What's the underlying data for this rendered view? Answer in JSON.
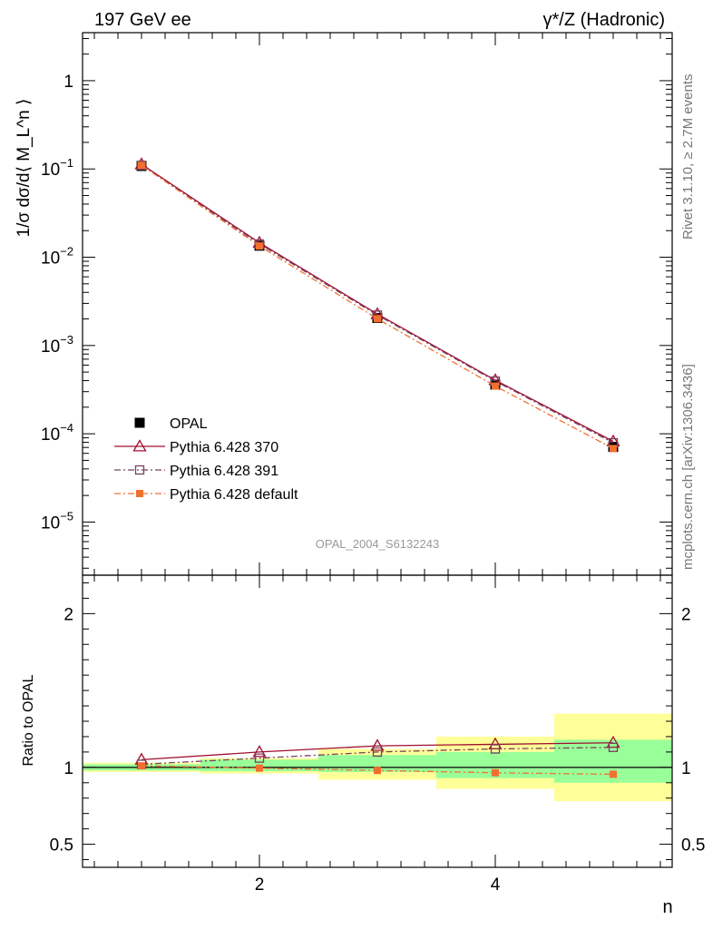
{
  "header": {
    "left": "197 GeV ee",
    "right": "γ*/Z (Hadronic)",
    "side_top": "Rivet 3.1.10, ≥ 2.7M events",
    "side_bottom": "mcplots.cern.ch [arXiv:1306.3436]",
    "analysis": "OPAL_2004_S6132243"
  },
  "chart_data": [
    {
      "type": "line",
      "panel": "main",
      "ylabel": "1/σ dσ/d⟨ M_L^n ⟩",
      "xlabel": "n",
      "yscale": "log",
      "xlim": [
        0.5,
        5.5
      ],
      "ylim": [
        2.5e-06,
        3.5
      ],
      "y_tick_labels": [
        {
          "value": 1,
          "base": "1",
          "exp": ""
        },
        {
          "value": 0.1,
          "base": "10",
          "exp": "−1"
        },
        {
          "value": 0.01,
          "base": "10",
          "exp": "−2"
        },
        {
          "value": 0.001,
          "base": "10",
          "exp": "−3"
        },
        {
          "value": 0.0001,
          "base": "10",
          "exp": "−4"
        },
        {
          "value": 1e-05,
          "base": "10",
          "exp": "−5"
        }
      ],
      "x": [
        1,
        2,
        3,
        4,
        5
      ],
      "series": [
        {
          "name": "OPAL",
          "color": "#000000",
          "values": [
            0.108,
            0.0135,
            0.00205,
            0.00036,
            7.1e-05
          ],
          "marker": "square-filled",
          "line": "none"
        },
        {
          "name": "Pythia 6.428 370",
          "color": "#a01030",
          "values": [
            0.113,
            0.0146,
            0.00227,
            0.000405,
            8.2e-05
          ],
          "marker": "triangle-open",
          "line": "solid"
        },
        {
          "name": "Pythia 6.428 391",
          "color": "#7a4060",
          "values": [
            0.11,
            0.0141,
            0.00221,
            0.000395,
            7.9e-05
          ],
          "marker": "square-open",
          "line": "dashdot"
        },
        {
          "name": "Pythia 6.428 default",
          "color": "#f07030",
          "values": [
            0.11,
            0.0134,
            0.00201,
            0.000347,
            6.8e-05
          ],
          "marker": "square-filled-small",
          "line": "dashdot"
        }
      ]
    },
    {
      "type": "line",
      "panel": "ratio",
      "ylabel": "Ratio to OPAL",
      "xlabel": "n",
      "xlim": [
        0.5,
        5.5
      ],
      "ylim": [
        0.35,
        2.25
      ],
      "x_ticks": [
        2,
        4
      ],
      "y_ticks": [
        0.5,
        1,
        2
      ],
      "y_tick_labels": [
        "0.5",
        "1",
        "2"
      ],
      "x_tick_labels": [
        "2",
        "4"
      ],
      "bands": {
        "bins": [
          [
            0.5,
            1.5
          ],
          [
            1.5,
            2.5
          ],
          [
            2.5,
            3.5
          ],
          [
            3.5,
            4.5
          ],
          [
            4.5,
            5.5
          ]
        ],
        "inner_color": "#99ff99",
        "outer_color": "#ffff99",
        "inner": [
          [
            0.98,
            1.02
          ],
          [
            0.975,
            1.05
          ],
          [
            0.97,
            1.08
          ],
          [
            0.93,
            1.1
          ],
          [
            0.9,
            1.18
          ]
        ],
        "outer": [
          [
            0.97,
            1.03
          ],
          [
            0.96,
            1.06
          ],
          [
            0.92,
            1.12
          ],
          [
            0.86,
            1.2
          ],
          [
            0.78,
            1.35
          ]
        ]
      },
      "x": [
        1,
        2,
        3,
        4,
        5
      ],
      "series": [
        {
          "name": "Pythia 6.428 370",
          "color": "#a01030",
          "values": [
            1.05,
            1.1,
            1.14,
            1.15,
            1.16
          ],
          "marker": "triangle-open",
          "line": "solid"
        },
        {
          "name": "Pythia 6.428 391",
          "color": "#7a4060",
          "values": [
            1.02,
            1.06,
            1.1,
            1.12,
            1.13
          ],
          "marker": "square-open",
          "line": "dashdot"
        },
        {
          "name": "Pythia 6.428 default",
          "color": "#f07030",
          "values": [
            1.01,
            0.995,
            0.98,
            0.965,
            0.955
          ],
          "marker": "square-filled-small",
          "line": "dashdot"
        }
      ]
    }
  ]
}
